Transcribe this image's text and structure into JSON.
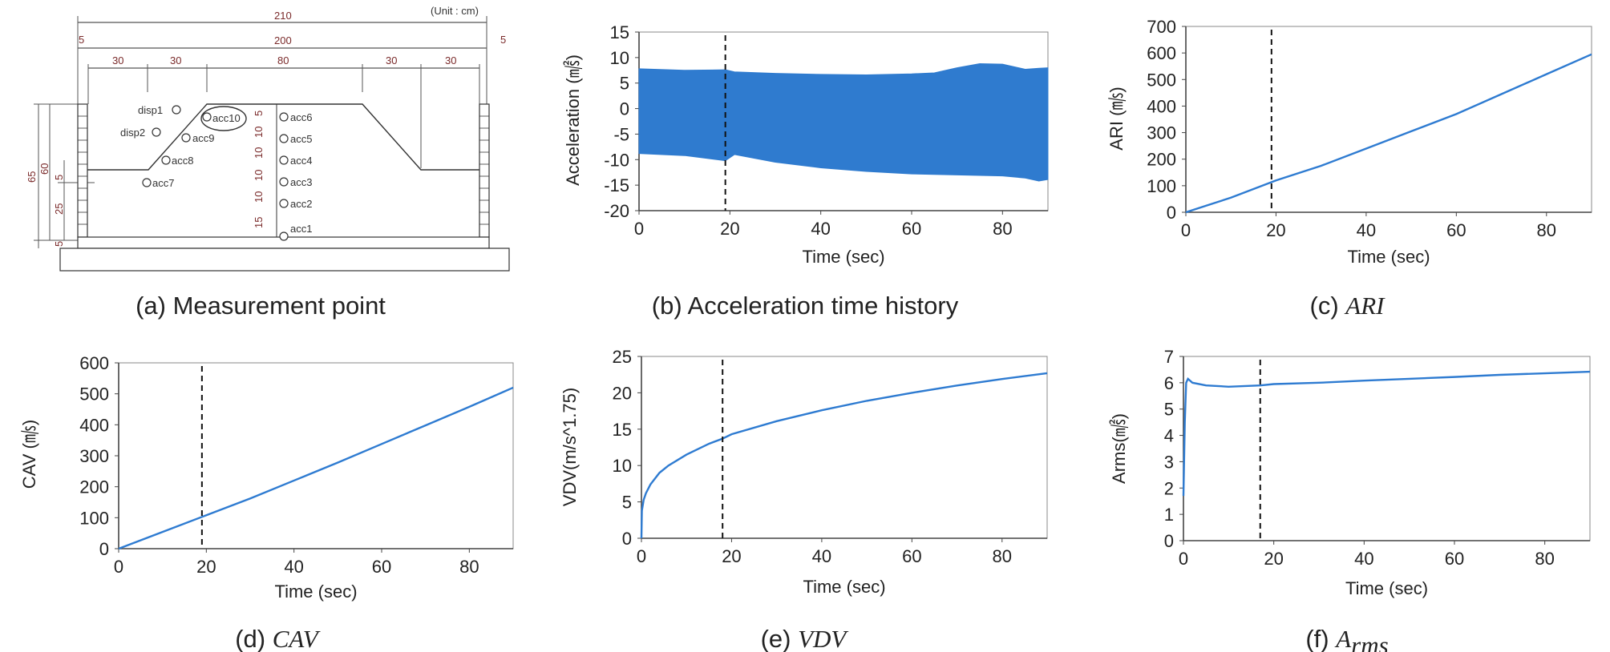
{
  "figure": {
    "panels": [
      {
        "id": "a",
        "caption_prefix": "(a)",
        "caption_text": "Measurement point",
        "caption_is_math": false
      },
      {
        "id": "b",
        "caption_prefix": "(b)",
        "caption_text": "Acceleration time history",
        "caption_is_math": false
      },
      {
        "id": "c",
        "caption_prefix": "(c)",
        "caption_text": "ARI",
        "caption_is_math": true
      },
      {
        "id": "d",
        "caption_prefix": "(d)",
        "caption_text": "CAV",
        "caption_is_math": true
      },
      {
        "id": "e",
        "caption_prefix": "(e)",
        "caption_text": "VDV",
        "caption_is_math": true
      },
      {
        "id": "f",
        "caption_prefix": "(f)",
        "caption_text": "A",
        "caption_subscript": "rms",
        "caption_is_math": true
      }
    ]
  },
  "diagram": {
    "unit_label": "(Unit : cm)",
    "dims_top": [
      "210",
      "200",
      "5",
      "5"
    ],
    "dims_row": [
      "30",
      "30",
      "80",
      "30",
      "30"
    ],
    "dims_left": [
      "65",
      "60",
      "5",
      "25",
      "5"
    ],
    "dims_center": [
      "5",
      "10",
      "10",
      "10",
      "10",
      "15"
    ],
    "sensors": {
      "disp1": "disp1",
      "disp2": "disp2",
      "acc1": "acc1",
      "acc2": "acc2",
      "acc3": "acc3",
      "acc4": "acc4",
      "acc5": "acc5",
      "acc6": "acc6",
      "acc7": "acc7",
      "acc8": "acc8",
      "acc9": "acc9",
      "acc10": "acc10"
    }
  },
  "colors": {
    "line": "#2e7bd1",
    "fill": "#2f7bcf",
    "marker": "#111111",
    "axis": "#444444"
  },
  "chart_data": [
    {
      "id": "b",
      "type": "area",
      "title": "",
      "xlabel": "Time (sec)",
      "ylabel": "Acceleration (㎨)",
      "xlim": [
        0,
        90
      ],
      "ylim": [
        -20,
        15
      ],
      "xticks": [
        0,
        20,
        40,
        60,
        80
      ],
      "yticks": [
        -20,
        -15,
        -10,
        -5,
        0,
        5,
        10,
        15
      ],
      "grid": false,
      "marker_x": 19,
      "series": [
        {
          "x": [
            0,
            10,
            19,
            21,
            30,
            40,
            50,
            60,
            65,
            70,
            75,
            80,
            85,
            88,
            90
          ],
          "upper": [
            7.8,
            7.5,
            7.6,
            7.2,
            6.9,
            6.7,
            6.6,
            6.8,
            7.0,
            8.0,
            8.8,
            8.7,
            7.7,
            7.9,
            8.0
          ],
          "lower": [
            -8.8,
            -9.2,
            -10.2,
            -9.0,
            -10.5,
            -11.6,
            -12.3,
            -12.8,
            -12.9,
            -13.0,
            -13.1,
            -13.2,
            -13.6,
            -14.2,
            -13.9
          ]
        }
      ]
    },
    {
      "id": "c",
      "type": "line",
      "title": "",
      "xlabel": "Time (sec)",
      "ylabel": "ARI (㎧)",
      "xlim": [
        0,
        90
      ],
      "ylim": [
        0,
        700
      ],
      "xticks": [
        0,
        20,
        40,
        60,
        80
      ],
      "yticks": [
        0,
        100,
        200,
        300,
        400,
        500,
        600,
        700
      ],
      "grid": false,
      "marker_x": 19,
      "series": [
        {
          "x": [
            0,
            10,
            20,
            30,
            40,
            50,
            60,
            70,
            80,
            90
          ],
          "values": [
            0,
            55,
            120,
            175,
            240,
            305,
            370,
            445,
            520,
            595
          ]
        }
      ]
    },
    {
      "id": "d",
      "type": "line",
      "title": "",
      "xlabel": "Time (sec)",
      "ylabel": "CAV (㎧)",
      "xlim": [
        0,
        90
      ],
      "ylim": [
        0,
        600
      ],
      "xticks": [
        0,
        20,
        40,
        60,
        80
      ],
      "yticks": [
        0,
        100,
        200,
        300,
        400,
        500,
        600
      ],
      "grid": false,
      "marker_x": 19,
      "series": [
        {
          "x": [
            0,
            10,
            20,
            30,
            40,
            50,
            60,
            70,
            80,
            90
          ],
          "values": [
            0,
            54,
            108,
            162,
            220,
            278,
            338,
            398,
            458,
            520
          ]
        }
      ]
    },
    {
      "id": "e",
      "type": "line",
      "title": "",
      "xlabel": "Time (sec)",
      "ylabel": "VDV(m/s^1.75)",
      "xlim": [
        0,
        90
      ],
      "ylim": [
        0,
        25
      ],
      "xticks": [
        0,
        20,
        40,
        60,
        80
      ],
      "yticks": [
        0,
        5,
        10,
        15,
        20,
        25
      ],
      "grid": false,
      "marker_x": 18,
      "series": [
        {
          "x": [
            0,
            0.1,
            0.5,
            1,
            2,
            4,
            6,
            10,
            15,
            18,
            20,
            30,
            40,
            50,
            60,
            70,
            80,
            90
          ],
          "values": [
            0,
            3.8,
            5.3,
            6.2,
            7.4,
            9.0,
            10.0,
            11.5,
            13.0,
            13.7,
            14.3,
            16.1,
            17.6,
            18.9,
            20.0,
            21.0,
            21.9,
            22.7
          ]
        }
      ]
    },
    {
      "id": "f",
      "type": "line",
      "title": "",
      "xlabel": "Time (sec)",
      "ylabel": "Arms(㎨)",
      "xlim": [
        0,
        90
      ],
      "ylim": [
        0,
        7
      ],
      "xticks": [
        0,
        20,
        40,
        60,
        80
      ],
      "yticks": [
        0,
        1,
        2,
        3,
        4,
        5,
        6,
        7
      ],
      "grid": false,
      "marker_x": 17,
      "series": [
        {
          "x": [
            0,
            0.3,
            0.6,
            1,
            2,
            5,
            10,
            17,
            20,
            30,
            40,
            50,
            60,
            70,
            80,
            90
          ],
          "values": [
            1.7,
            4.5,
            6.0,
            6.15,
            6.0,
            5.9,
            5.85,
            5.9,
            5.95,
            6.0,
            6.08,
            6.15,
            6.22,
            6.3,
            6.36,
            6.42
          ]
        }
      ]
    }
  ]
}
